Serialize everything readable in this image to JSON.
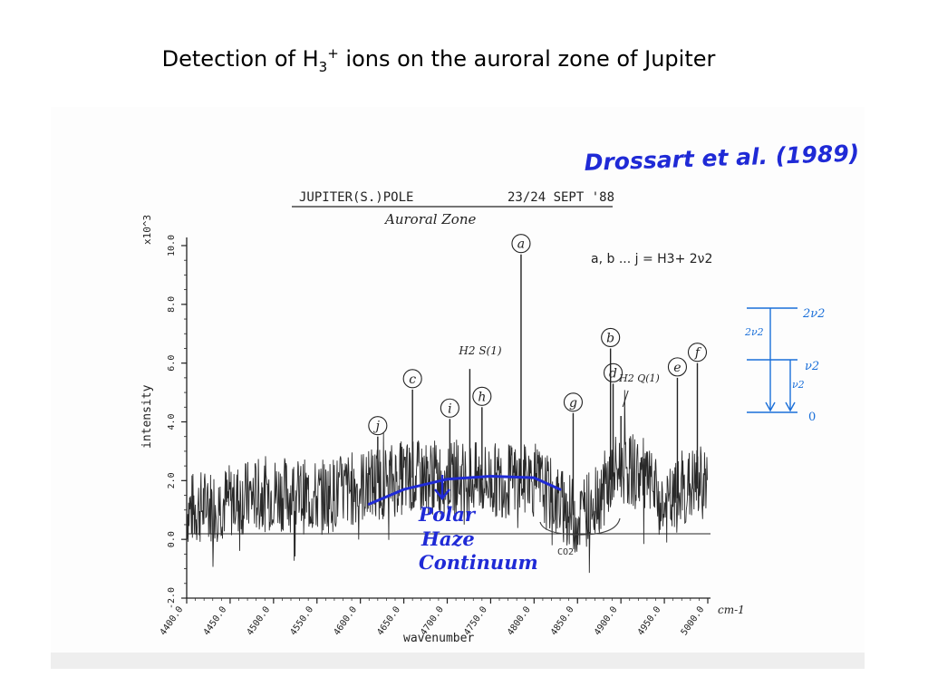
{
  "slide": {
    "title_main": "Detection of H",
    "title_sub": "3",
    "title_sup": "+",
    "title_rest": " ions on the auroral zone of Jupiter"
  },
  "annotations": {
    "citation": "Drossart et al. (1989)",
    "header_left": "JUPITER(S.)POLE",
    "header_right": "23/24 SEPT '88",
    "subtitle": "Auroral Zone",
    "legend_formula": "a, b ... j = H3+ 2ν2",
    "h2_s1": "H2 S(1)",
    "h2_q": "H2 Q(1)",
    "polar_haze": [
      "Polar",
      "Haze",
      "Continuum"
    ],
    "co2": "CO2",
    "x_unit": "cm-1",
    "y_exponent": "x10^3",
    "energy_levels": [
      "2ν2",
      "ν2",
      "0"
    ],
    "energy_transitions": [
      "2ν2",
      "ν2"
    ]
  },
  "chart_data": {
    "type": "line",
    "xlabel": "wavenumber",
    "ylabel": "intensity",
    "xlim": [
      4400,
      5000
    ],
    "ylim": [
      -2.0,
      10.0
    ],
    "x_ticks": [
      "4400.0",
      "4450.0",
      "4500.0",
      "4550.0",
      "4600.0",
      "4650.0",
      "4700.0",
      "4750.0",
      "4800.0",
      "4850.0",
      "4900.0",
      "4950.0",
      "5000.0"
    ],
    "y_ticks": [
      "-2.0",
      "0.0",
      "2.0",
      "4.0",
      "6.0",
      "8.0",
      "10.0"
    ],
    "y_tick_values": [
      -2,
      0,
      2,
      4,
      6,
      8,
      10
    ],
    "grid": false,
    "baseline_continuum": [
      {
        "x": 4400,
        "y": 1.0
      },
      {
        "x": 4450,
        "y": 1.3
      },
      {
        "x": 4500,
        "y": 1.6
      },
      {
        "x": 4550,
        "y": 1.4
      },
      {
        "x": 4600,
        "y": 1.8
      },
      {
        "x": 4650,
        "y": 2.1
      },
      {
        "x": 4700,
        "y": 2.1
      },
      {
        "x": 4750,
        "y": 2.0
      },
      {
        "x": 4800,
        "y": 2.0
      },
      {
        "x": 4830,
        "y": 1.2
      },
      {
        "x": 4850,
        "y": 0.7
      },
      {
        "x": 4875,
        "y": 1.5
      },
      {
        "x": 4900,
        "y": 2.5
      },
      {
        "x": 4925,
        "y": 2.2
      },
      {
        "x": 4950,
        "y": 1.0
      },
      {
        "x": 4980,
        "y": 1.8
      },
      {
        "x": 5000,
        "y": 2.0
      }
    ],
    "peaks": [
      {
        "label": "j",
        "x": 4620,
        "y": 3.5
      },
      {
        "label": "c",
        "x": 4660,
        "y": 5.1
      },
      {
        "label": "i",
        "x": 4703,
        "y": 4.1
      },
      {
        "label": "H2 S(1)",
        "x": 4726,
        "y": 5.8
      },
      {
        "label": "h",
        "x": 4740,
        "y": 4.5
      },
      {
        "label": "a",
        "x": 4785,
        "y": 9.7
      },
      {
        "label": "g",
        "x": 4845,
        "y": 4.3
      },
      {
        "label": "b",
        "x": 4888,
        "y": 6.5
      },
      {
        "label": "d",
        "x": 4891,
        "y": 5.3
      },
      {
        "label": "H2 Q(1)",
        "x": 4900,
        "y": 4.2
      },
      {
        "label": "e",
        "x": 4965,
        "y": 5.5
      },
      {
        "label": "f",
        "x": 4988,
        "y": 6.0
      }
    ],
    "polar_haze_curve": [
      {
        "x": 4610,
        "y": 1.2
      },
      {
        "x": 4650,
        "y": 1.7
      },
      {
        "x": 4700,
        "y": 2.05
      },
      {
        "x": 4750,
        "y": 2.15
      },
      {
        "x": 4800,
        "y": 2.1
      },
      {
        "x": 4830,
        "y": 1.7
      }
    ]
  },
  "colors": {
    "ink": "#222222",
    "blue_ink": "#1f2ad6",
    "sky_ink": "#1a6fd9",
    "slide_text": "#000000"
  }
}
